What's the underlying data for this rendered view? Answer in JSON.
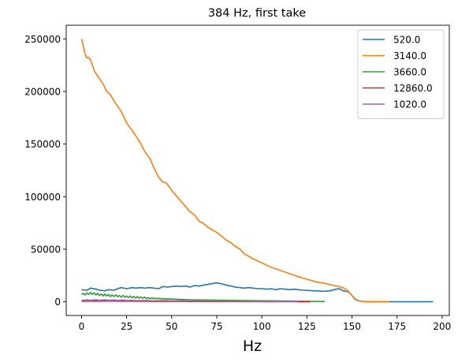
{
  "chart_data": {
    "type": "line",
    "title": "384 Hz, first take",
    "xlabel": "Hz",
    "ylabel": "",
    "xlim": [
      -8.5,
      204
    ],
    "ylim": [
      -13000,
      263000
    ],
    "x_ticks": [
      0,
      25,
      50,
      75,
      100,
      125,
      150,
      175,
      200
    ],
    "y_ticks": [
      0,
      50000,
      100000,
      150000,
      200000,
      250000
    ],
    "grid": false,
    "legend": "top-right",
    "series": [
      {
        "name": "520.0",
        "color": "#1f77b4",
        "x": [
          0,
          3,
          5,
          8,
          10,
          13,
          15,
          18,
          20,
          22,
          25,
          28,
          30,
          33,
          35,
          38,
          40,
          43,
          45,
          48,
          50,
          53,
          55,
          58,
          60,
          63,
          65,
          68,
          70,
          73,
          75,
          78,
          80,
          83,
          85,
          88,
          90,
          93,
          95,
          98,
          100,
          103,
          105,
          108,
          110,
          113,
          115,
          118,
          120,
          123,
          125,
          128,
          130,
          133,
          135,
          138,
          140,
          143,
          145,
          148,
          150,
          152,
          154,
          156,
          158,
          160,
          165,
          170,
          175,
          180,
          185,
          190,
          195
        ],
        "y": [
          11500,
          11000,
          13000,
          12000,
          11000,
          10500,
          11500,
          11000,
          12500,
          13500,
          12500,
          13500,
          13000,
          13500,
          13000,
          13500,
          13000,
          12500,
          14500,
          14000,
          14500,
          15000,
          14500,
          15000,
          14000,
          15500,
          15000,
          16000,
          16500,
          17500,
          18000,
          17000,
          16000,
          15000,
          14000,
          13500,
          13000,
          13500,
          13000,
          12500,
          12500,
          12000,
          12500,
          11500,
          12500,
          12000,
          11500,
          12000,
          11500,
          11000,
          11000,
          10500,
          10500,
          10000,
          10000,
          10500,
          11500,
          12500,
          10500,
          9500,
          6000,
          2000,
          800,
          300,
          200,
          100,
          100,
          100,
          100,
          100,
          100,
          100,
          100
        ]
      },
      {
        "name": "3140.0",
        "color": "#ff7f0e",
        "x": [
          0,
          1,
          2,
          3,
          4,
          5,
          6,
          7,
          8,
          9,
          10,
          12,
          14,
          16,
          18,
          20,
          22,
          25,
          28,
          30,
          33,
          35,
          38,
          40,
          42,
          43,
          45,
          47,
          48,
          50,
          53,
          55,
          58,
          60,
          63,
          65,
          68,
          70,
          73,
          75,
          78,
          80,
          83,
          85,
          88,
          90,
          95,
          100,
          105,
          110,
          115,
          120,
          125,
          130,
          135,
          140,
          143,
          145,
          147,
          148,
          150,
          152,
          154,
          156,
          158,
          160,
          165,
          171
        ],
        "y": [
          250000,
          243000,
          235000,
          232000,
          232500,
          230000,
          225000,
          220000,
          217000,
          215000,
          212000,
          207000,
          200000,
          197000,
          191000,
          186000,
          181000,
          170000,
          163000,
          158000,
          150000,
          143000,
          136000,
          128000,
          121000,
          118000,
          114000,
          113000,
          111000,
          106000,
          100000,
          96000,
          90000,
          86000,
          82000,
          77000,
          74000,
          71000,
          68000,
          66000,
          62000,
          59000,
          56000,
          53000,
          50000,
          46000,
          41000,
          37000,
          33000,
          30000,
          27000,
          24000,
          21500,
          19000,
          17500,
          15500,
          14500,
          13500,
          11500,
          10000,
          6000,
          2500,
          800,
          300,
          200,
          100,
          100,
          100
        ]
      },
      {
        "name": "3660.0",
        "color": "#2ca02c",
        "x": [
          0,
          1,
          2,
          3,
          4,
          5,
          6,
          7,
          8,
          9,
          10,
          11,
          12,
          13,
          14,
          15,
          16,
          17,
          18,
          19,
          20,
          21,
          22,
          23,
          24,
          25,
          26,
          27,
          28,
          29,
          30,
          31,
          32,
          33,
          34,
          35,
          36,
          37,
          38,
          39,
          40,
          41,
          42,
          43,
          44,
          45,
          46,
          47,
          48,
          49,
          50,
          52,
          54,
          56,
          58,
          60,
          65,
          70,
          75,
          80,
          85,
          90,
          95,
          100,
          105,
          110,
          115,
          120,
          125,
          130,
          135
        ],
        "y": [
          7000,
          8000,
          6500,
          8500,
          7000,
          9000,
          7000,
          8500,
          6500,
          8000,
          6000,
          7500,
          5500,
          7500,
          5500,
          7000,
          5000,
          6500,
          5000,
          6500,
          5000,
          6000,
          4500,
          6000,
          4500,
          5500,
          4000,
          5500,
          4000,
          5000,
          3500,
          5000,
          3500,
          4500,
          3500,
          4500,
          3000,
          4000,
          3000,
          4000,
          3000,
          3500,
          2800,
          3500,
          2800,
          3200,
          2500,
          3000,
          2500,
          3000,
          2500,
          2500,
          2300,
          2200,
          2100,
          2000,
          1800,
          1700,
          1600,
          1500,
          1300,
          1200,
          1100,
          1000,
          900,
          800,
          700,
          600,
          500,
          400,
          300
        ]
      },
      {
        "name": "12860.0",
        "color": "#d62728",
        "x": [
          0,
          5,
          10,
          15,
          20,
          25,
          30,
          35,
          40,
          45,
          50,
          55,
          60,
          65,
          70,
          75,
          80,
          85,
          90,
          95,
          100,
          105,
          110,
          115,
          120,
          125,
          127
        ],
        "y": [
          500,
          700,
          600,
          800,
          600,
          700,
          500,
          600,
          400,
          500,
          400,
          500,
          300,
          400,
          300,
          300,
          250,
          300,
          200,
          250,
          200,
          200,
          150,
          150,
          100,
          100,
          100
        ]
      },
      {
        "name": "1020.0",
        "color": "#9467bd",
        "x": [
          0,
          3,
          5,
          8,
          10,
          13,
          15,
          18,
          20,
          23,
          25,
          28,
          30,
          35,
          40,
          45,
          50,
          55,
          60,
          65,
          70,
          75,
          80,
          85,
          90,
          95,
          100,
          105,
          110,
          115,
          120
        ],
        "y": [
          1300,
          1800,
          1400,
          2000,
          1500,
          1900,
          1400,
          1800,
          1300,
          1700,
          1200,
          1500,
          1100,
          1300,
          1000,
          1200,
          900,
          1000,
          800,
          900,
          800,
          800,
          700,
          700,
          600,
          600,
          500,
          500,
          400,
          400,
          300
        ]
      }
    ]
  }
}
